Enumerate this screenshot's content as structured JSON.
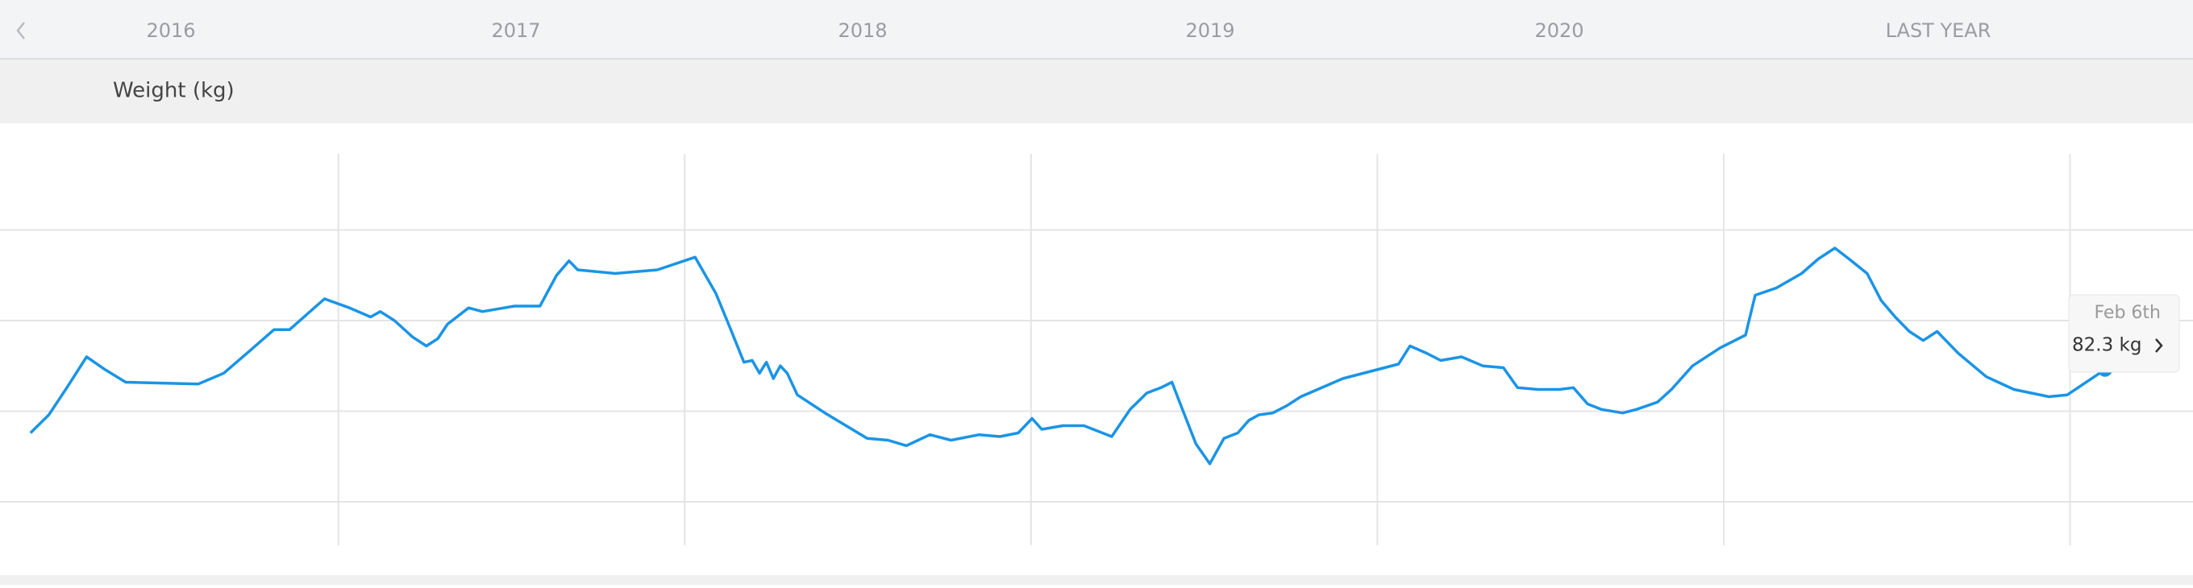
{
  "nav": {
    "tabs": [
      "2016",
      "2017",
      "2018",
      "2019",
      "2020",
      "LAST YEAR"
    ]
  },
  "chart_data": {
    "type": "line",
    "title": "Weight (kg)",
    "x": [
      2016.111,
      2016.164,
      2016.216,
      2016.273,
      2016.326,
      2016.386,
      2016.596,
      2016.669,
      2016.742,
      2016.814,
      2016.859,
      2016.96,
      2017.032,
      2017.093,
      2017.121,
      2017.162,
      2017.214,
      2017.254,
      2017.287,
      2017.315,
      2017.376,
      2017.416,
      2017.509,
      2017.582,
      2017.63,
      2017.666,
      2017.691,
      2017.8,
      2017.921,
      2018.03,
      2018.09,
      2018.131,
      2018.171,
      2018.195,
      2018.216,
      2018.236,
      2018.256,
      2018.276,
      2018.296,
      2018.325,
      2018.405,
      2018.527,
      2018.587,
      2018.64,
      2018.708,
      2018.769,
      2018.85,
      2018.91,
      2018.963,
      2019.003,
      2019.031,
      2019.092,
      2019.153,
      2019.233,
      2019.286,
      2019.334,
      2019.375,
      2019.407,
      2019.435,
      2019.476,
      2019.516,
      2019.557,
      2019.597,
      2019.629,
      2019.658,
      2019.698,
      2019.738,
      2019.779,
      2019.9,
      2020.061,
      2020.094,
      2020.142,
      2020.183,
      2020.243,
      2020.304,
      2020.364,
      2020.405,
      2020.465,
      2020.526,
      2020.566,
      2020.607,
      2020.647,
      2020.708,
      2020.748,
      2020.809,
      2020.849,
      2020.91,
      2020.99,
      2021.063,
      2021.091,
      2021.152,
      2021.225,
      2021.273,
      2021.321,
      2021.362,
      2021.414,
      2021.455,
      2021.495,
      2021.536,
      2021.576,
      2021.616,
      2021.677,
      2021.758,
      2021.838,
      2021.939,
      2021.992,
      2022.101
    ],
    "series": [
      {
        "color": "#1a94e6",
        "values": [
          78.8,
          79.8,
          81.3,
          83.0,
          82.3,
          81.6,
          81.5,
          82.1,
          83.3,
          84.5,
          84.5,
          86.2,
          85.7,
          85.2,
          85.5,
          85.0,
          84.1,
          83.6,
          84.0,
          84.8,
          85.7,
          85.5,
          85.8,
          85.8,
          87.5,
          88.3,
          87.8,
          87.6,
          87.8,
          88.5,
          86.5,
          84.6,
          82.7,
          82.8,
          82.1,
          82.7,
          81.8,
          82.5,
          82.1,
          80.9,
          79.9,
          78.5,
          78.4,
          78.1,
          78.7,
          78.4,
          78.7,
          78.6,
          78.8,
          79.6,
          79.0,
          79.2,
          79.2,
          78.6,
          80.1,
          81.0,
          81.3,
          81.6,
          80.2,
          78.2,
          77.1,
          78.5,
          78.8,
          79.5,
          79.8,
          79.9,
          80.3,
          80.8,
          81.8,
          82.6,
          83.6,
          83.2,
          82.8,
          83.0,
          82.5,
          82.4,
          81.3,
          81.2,
          81.2,
          81.3,
          80.4,
          80.1,
          79.9,
          80.1,
          80.5,
          81.2,
          82.5,
          83.5,
          84.2,
          86.4,
          86.8,
          87.6,
          88.4,
          89.0,
          88.4,
          87.6,
          86.1,
          85.2,
          84.4,
          83.9,
          84.4,
          83.2,
          81.9,
          81.2,
          80.8,
          80.9,
          82.3
        ]
      }
    ],
    "xlim": [
      2016.023,
      2022.355
    ],
    "xticks": [
      2017,
      2018,
      2019,
      2020,
      2021,
      2022
    ],
    "ylim": [
      72.6,
      94.2
    ],
    "yticks": [
      75,
      80,
      85,
      90
    ],
    "grid": true,
    "tooltip": {
      "label": "Feb 6th",
      "value_label": "82.3 kg"
    }
  }
}
